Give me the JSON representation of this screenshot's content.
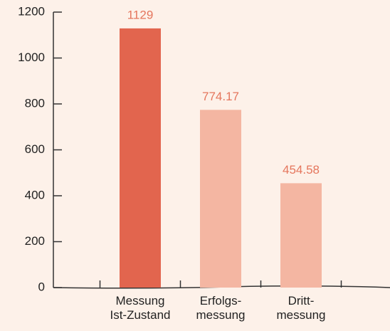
{
  "chart_data": {
    "type": "bar",
    "categories": [
      [
        "Messung",
        "Ist-Zustand"
      ],
      [
        "Erfolgs-",
        "messung"
      ],
      [
        "Dritt-",
        "messung"
      ]
    ],
    "values": [
      1129,
      774.17,
      454.58
    ],
    "colors": [
      "#e2654e",
      "#f4b6a2",
      "#f4b6a2"
    ],
    "label_color": "#e5765d",
    "ylim": [
      0,
      1200
    ],
    "yticks": [
      0,
      200,
      400,
      600,
      800,
      1000,
      1200
    ],
    "grid": false
  }
}
